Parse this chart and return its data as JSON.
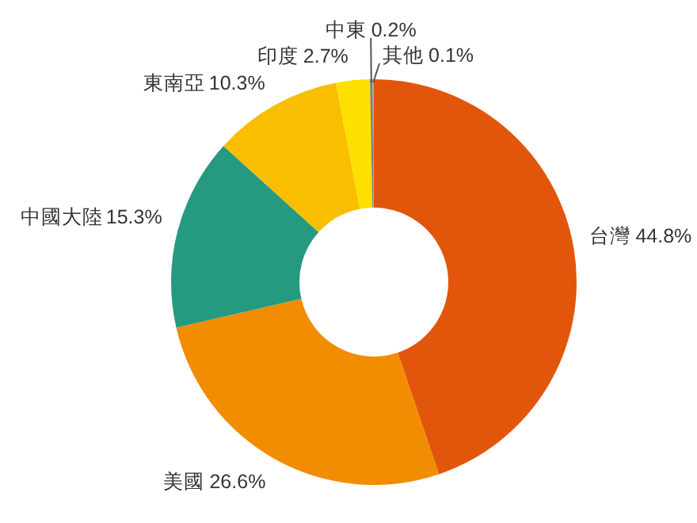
{
  "chart_data": {
    "type": "donut",
    "categories": [
      "台灣",
      "美國",
      "中國大陸",
      "東南亞",
      "印度",
      "中東",
      "其他"
    ],
    "values": [
      44.8,
      26.6,
      15.3,
      10.3,
      2.7,
      0.2,
      0.1
    ],
    "value_labels": [
      "44.8%",
      "26.6%",
      "15.3%",
      "10.3%",
      "2.7%",
      "0.2%",
      "0.1%"
    ],
    "colors": [
      "#e2560c",
      "#f28c00",
      "#259a80",
      "#f9be00",
      "#fde000",
      "#7a7a7a",
      "#a8a8a8"
    ]
  }
}
